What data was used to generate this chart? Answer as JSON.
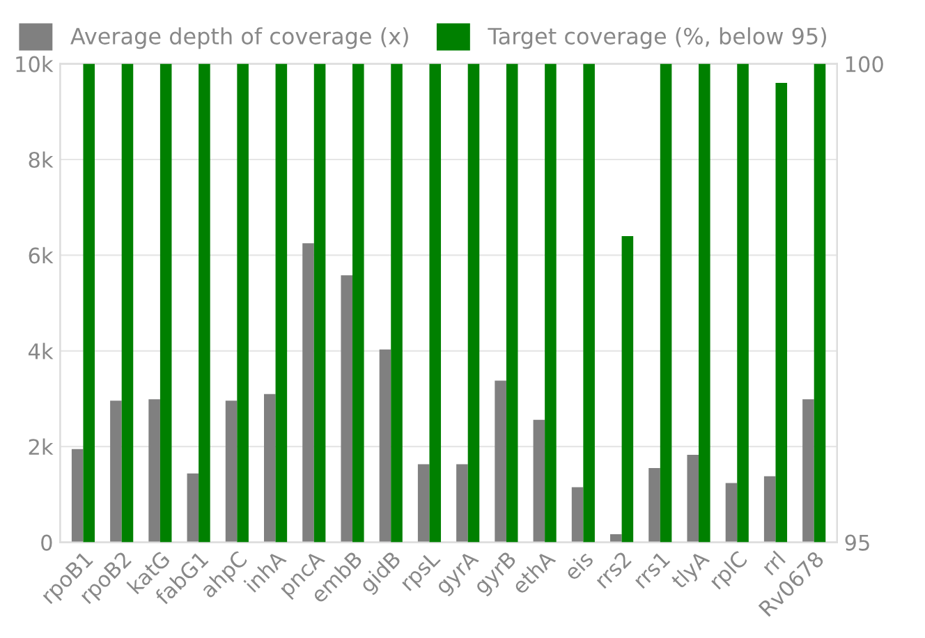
{
  "chart_data": {
    "type": "bar",
    "categories": [
      "rpoB1",
      "rpoB2",
      "katG",
      "fabG1",
      "ahpC",
      "inhA",
      "pncA",
      "embB",
      "gidB",
      "rpsL",
      "gyrA",
      "gyrB",
      "ethA",
      "eis",
      "rrs2",
      "rrs1",
      "tlyA",
      "rplC",
      "rrl",
      "Rv0678"
    ],
    "series": [
      {
        "name": "Average depth of coverage (x)",
        "color": "#808080",
        "values": [
          1950,
          2960,
          2990,
          1440,
          2960,
          3100,
          6250,
          5580,
          4030,
          1630,
          1630,
          3380,
          2560,
          1150,
          170,
          1550,
          1830,
          1240,
          1380,
          2990
        ]
      },
      {
        "name": "Target coverage (%, below 95)",
        "color": "#008000",
        "axis": "y2",
        "values": [
          100,
          100,
          100,
          100,
          100,
          100,
          100,
          100,
          100,
          100,
          100,
          100,
          100,
          100,
          98.2,
          100,
          100,
          100,
          99.8,
          100
        ]
      }
    ],
    "ylim": [
      0,
      10000
    ],
    "yticks": [
      {
        "value": 0,
        "label": "0"
      },
      {
        "value": 2000,
        "label": "2k"
      },
      {
        "value": 4000,
        "label": "4k"
      },
      {
        "value": 6000,
        "label": "6k"
      },
      {
        "value": 8000,
        "label": "8k"
      },
      {
        "value": 10000,
        "label": "10k"
      }
    ],
    "y2lim": [
      95,
      100
    ],
    "y2ticks": [
      95,
      100
    ],
    "grid": "y",
    "legend": "top"
  }
}
